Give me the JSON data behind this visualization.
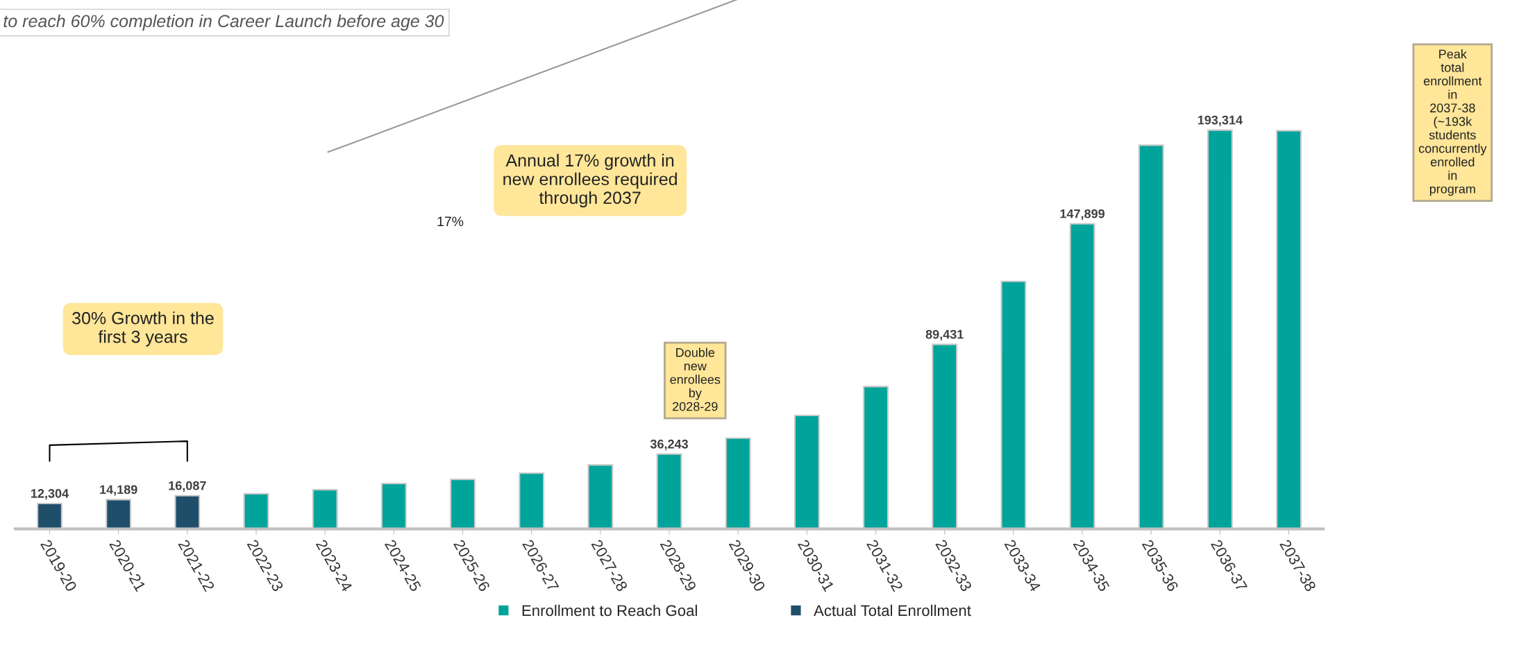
{
  "chart_data": {
    "type": "bar",
    "legend": "bottom",
    "title": "to reach 60% completion in Career Launch before age 30",
    "categories": [
      "2019-20",
      "2020-21",
      "2021-22",
      "2022-23",
      "2023-24",
      "2024-25",
      "2025-26",
      "2026-27",
      "2027-28",
      "2028-29",
      "2029-30",
      "2030-31",
      "2031-32",
      "2032-33",
      "2033-34",
      "2034-35",
      "2035-36",
      "2036-37",
      "2037-38"
    ],
    "series": [
      {
        "name": "Enrollment to Reach Goal",
        "color": "#00a49a",
        "values": [
          null,
          null,
          null,
          17000,
          19000,
          22000,
          24000,
          27000,
          31000,
          36243,
          44000,
          55000,
          69000,
          89431,
          120000,
          147899,
          186000,
          193314,
          193000
        ],
        "value_labels": [
          null,
          null,
          null,
          null,
          null,
          null,
          null,
          null,
          null,
          "36,243",
          null,
          null,
          null,
          "89,431",
          null,
          "147,899",
          null,
          "193,314",
          null
        ]
      },
      {
        "name": "Actual Total Enrollment",
        "color": "#1f4e6a",
        "values": [
          12304,
          14189,
          16087,
          null,
          null,
          null,
          null,
          null,
          null,
          null,
          null,
          null,
          null,
          null,
          null,
          null,
          null,
          null,
          null
        ],
        "value_labels": [
          "12,304",
          "14,189",
          "16,087",
          null,
          null,
          null,
          null,
          null,
          null,
          null,
          null,
          null,
          null,
          null,
          null,
          null,
          null,
          null,
          null
        ]
      }
    ],
    "annotations": [
      "Annual 17% growth in new enrollees required through 2037",
      "17%",
      "30% Growth in the first 3 years",
      "Double new enrollees by 2028-29",
      "Peak total enrollment in 2037-38 (~193k students concurrently enrolled in program"
    ]
  }
}
